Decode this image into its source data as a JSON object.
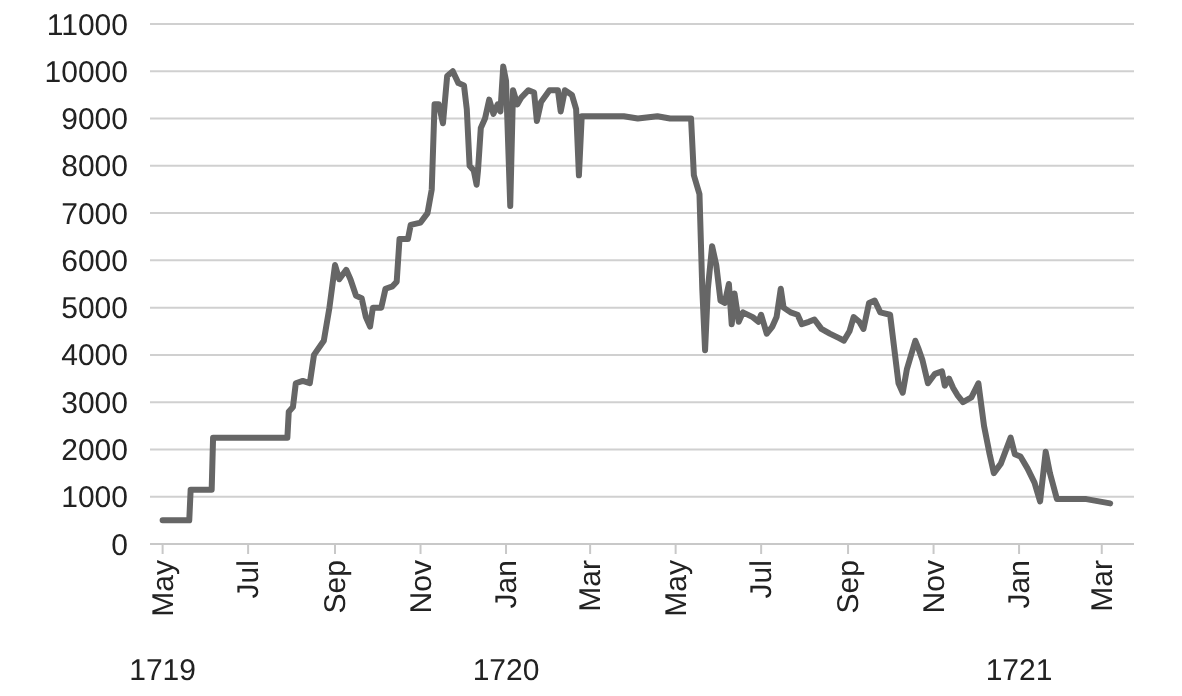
{
  "chart_data": {
    "type": "line",
    "grid": "y",
    "annotations": [
      "1719",
      "1720",
      "1721"
    ],
    "marker": "none",
    "line_style": "solid",
    "xlim": [
      "1719-04-22",
      "1721-03-24"
    ],
    "xticks": [
      {
        "value": "1719-05-01",
        "label": "May"
      },
      {
        "value": "1719-07-01",
        "label": "Jul"
      },
      {
        "value": "1719-09-01",
        "label": "Sep"
      },
      {
        "value": "1719-11-01",
        "label": "Nov"
      },
      {
        "value": "1720-01-01",
        "label": "Jan"
      },
      {
        "value": "1720-03-01",
        "label": "Mar"
      },
      {
        "value": "1720-05-01",
        "label": "May"
      },
      {
        "value": "1720-07-01",
        "label": "Jul"
      },
      {
        "value": "1720-09-01",
        "label": "Sep"
      },
      {
        "value": "1720-11-01",
        "label": "Nov"
      },
      {
        "value": "1721-01-01",
        "label": "Jan"
      },
      {
        "value": "1721-03-01",
        "label": "Mar"
      }
    ],
    "ylim": [
      0,
      11000
    ],
    "yticks": [
      0,
      1000,
      2000,
      3000,
      4000,
      5000,
      6000,
      7000,
      8000,
      9000,
      10000,
      11000
    ],
    "series": [
      {
        "color": "#666666",
        "x": [
          "1719-05-01",
          "1719-05-20",
          "1719-05-21",
          "1719-06-05",
          "1719-06-06",
          "1719-07-29",
          "1719-07-30",
          "1719-08-02",
          "1719-08-04",
          "1719-08-09",
          "1719-08-14",
          "1719-08-17",
          "1719-08-24",
          "1719-08-28",
          "1719-09-01",
          "1719-09-04",
          "1719-09-09",
          "1719-09-12",
          "1719-09-16",
          "1719-09-20",
          "1719-09-23",
          "1719-09-26",
          "1719-09-28",
          "1719-10-04",
          "1719-10-07",
          "1719-10-12",
          "1719-10-15",
          "1719-10-17",
          "1719-10-23",
          "1719-10-25",
          "1719-11-01",
          "1719-11-06",
          "1719-11-09",
          "1719-11-11",
          "1719-11-14",
          "1719-11-17",
          "1719-11-20",
          "1719-11-24",
          "1719-11-28",
          "1719-12-02",
          "1719-12-04",
          "1719-12-06",
          "1719-12-09",
          "1719-12-11",
          "1719-12-12",
          "1719-12-14",
          "1719-12-17",
          "1719-12-20",
          "1719-12-23",
          "1719-12-26",
          "1719-12-28",
          "1719-12-30",
          "1720-01-01",
          "1720-01-04",
          "1720-01-06",
          "1720-01-09",
          "1720-01-12",
          "1720-01-17",
          "1720-01-21",
          "1720-01-23",
          "1720-01-26",
          "1720-02-01",
          "1720-02-07",
          "1720-02-09",
          "1720-02-12",
          "1720-02-17",
          "1720-02-20",
          "1720-02-22",
          "1720-02-24",
          "1720-03-25",
          "1720-04-04",
          "1720-04-18",
          "1720-04-27",
          "1720-05-12",
          "1720-05-14",
          "1720-05-18",
          "1720-05-20",
          "1720-05-22",
          "1720-05-24",
          "1720-05-27",
          "1720-05-30",
          "1720-06-02",
          "1720-06-05",
          "1720-06-08",
          "1720-06-10",
          "1720-06-12",
          "1720-06-15",
          "1720-06-18",
          "1720-06-25",
          "1720-06-29",
          "1720-07-01",
          "1720-07-05",
          "1720-07-09",
          "1720-07-12",
          "1720-07-15",
          "1720-07-17",
          "1720-07-22",
          "1720-07-27",
          "1720-07-30",
          "1720-08-04",
          "1720-08-08",
          "1720-08-13",
          "1720-08-19",
          "1720-08-26",
          "1720-08-29",
          "1720-09-02",
          "1720-09-05",
          "1720-09-09",
          "1720-09-12",
          "1720-09-16",
          "1720-09-20",
          "1720-09-24",
          "1720-10-01",
          "1720-10-07",
          "1720-10-10",
          "1720-10-13",
          "1720-10-19",
          "1720-10-21",
          "1720-10-24",
          "1720-10-28",
          "1720-11-02",
          "1720-11-07",
          "1720-11-09",
          "1720-11-12",
          "1720-11-15",
          "1720-11-18",
          "1720-11-22",
          "1720-11-28",
          "1720-12-03",
          "1720-12-07",
          "1720-12-11",
          "1720-12-14",
          "1720-12-19",
          "1720-12-26",
          "1720-12-29",
          "1721-01-02",
          "1721-01-07",
          "1721-01-12",
          "1721-01-16",
          "1721-01-20",
          "1721-01-23",
          "1721-01-28",
          "1721-02-18",
          "1721-03-07"
        ],
        "values": [
          500,
          500,
          1150,
          1150,
          2250,
          2250,
          2800,
          2900,
          3400,
          3450,
          3400,
          4000,
          4300,
          5000,
          5900,
          5600,
          5800,
          5600,
          5250,
          5200,
          4800,
          4600,
          5000,
          5000,
          5400,
          5450,
          5550,
          6450,
          6450,
          6750,
          6800,
          7000,
          7500,
          9300,
          9300,
          8900,
          9900,
          10000,
          9750,
          9700,
          9200,
          8000,
          7900,
          7600,
          7900,
          8800,
          9000,
          9400,
          9100,
          9300,
          9150,
          10100,
          9800,
          7150,
          9600,
          9300,
          9450,
          9600,
          9550,
          8950,
          9350,
          9600,
          9600,
          9150,
          9600,
          9500,
          9200,
          7800,
          9050,
          9050,
          9000,
          9050,
          9000,
          9000,
          7800,
          7400,
          5400,
          4100,
          5400,
          6300,
          5900,
          5150,
          5100,
          5500,
          4650,
          5300,
          4700,
          4900,
          4800,
          4700,
          4850,
          4450,
          4600,
          4800,
          5400,
          5000,
          4900,
          4850,
          4650,
          4700,
          4750,
          4550,
          4450,
          4350,
          4300,
          4500,
          4800,
          4700,
          4550,
          5100,
          5150,
          4900,
          4850,
          3400,
          3200,
          3700,
          4300,
          4150,
          3900,
          3400,
          3600,
          3650,
          3350,
          3500,
          3300,
          3150,
          3000,
          3100,
          3400,
          2500,
          1900,
          1500,
          1700,
          2250,
          1900,
          1850,
          1600,
          1300,
          900,
          1950,
          1500,
          950,
          950,
          860
        ]
      }
    ]
  }
}
